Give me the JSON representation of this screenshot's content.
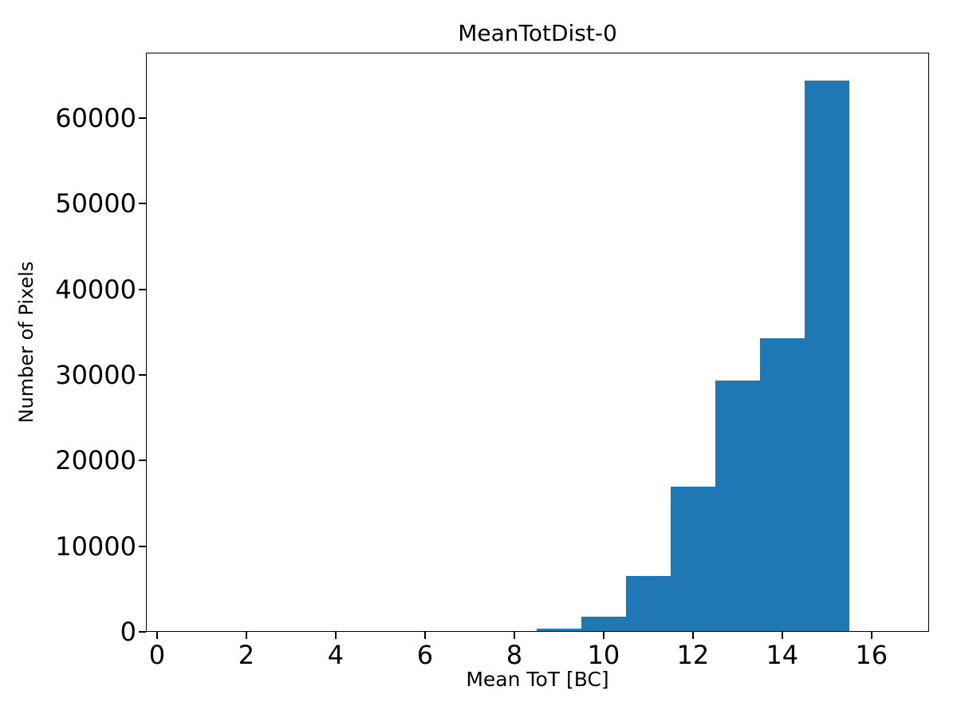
{
  "chart_data": {
    "type": "bar",
    "subtype": "histogram",
    "title": "MeanTotDist-0",
    "xlabel": "Mean ToT [BC]",
    "ylabel": "Number of Pixels",
    "bar_color": "#1f77b4",
    "axis_color": "#000000",
    "background_color": "#ffffff",
    "grid": false,
    "legend": null,
    "bin_edges": [
      8.5,
      9.5,
      10.5,
      11.5,
      12.5,
      13.5,
      14.5,
      15.5
    ],
    "counts": [
      300,
      1700,
      6400,
      16900,
      29300,
      34200,
      64300
    ],
    "xlim": [
      -0.25,
      17.29
    ],
    "ylim": [
      0,
      67660
    ],
    "xticks": [
      0,
      2,
      4,
      6,
      8,
      10,
      12,
      14,
      16
    ],
    "xtick_labels": [
      "0",
      "2",
      "4",
      "6",
      "8",
      "10",
      "12",
      "14",
      "16"
    ],
    "yticks": [
      0,
      10000,
      20000,
      30000,
      40000,
      50000,
      60000
    ],
    "ytick_labels": [
      "0",
      "10000",
      "20000",
      "30000",
      "40000",
      "50000",
      "60000"
    ]
  }
}
